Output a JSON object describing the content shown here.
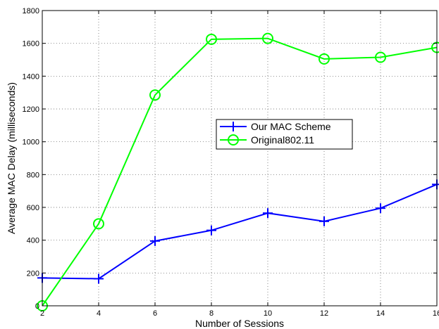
{
  "chart_data": {
    "type": "line",
    "xlabel": "Number of Sessions",
    "ylabel": "Average MAC Delay (milliseconds)",
    "xlim": [
      2,
      16
    ],
    "ylim": [
      0,
      1800
    ],
    "xticks": [
      2,
      4,
      6,
      8,
      10,
      12,
      14,
      16
    ],
    "yticks": [
      0,
      200,
      400,
      600,
      800,
      1000,
      1200,
      1400,
      1600,
      1800
    ],
    "grid": true,
    "legend_position": "center-right",
    "x": [
      2,
      4,
      6,
      8,
      10,
      12,
      14,
      16
    ],
    "series": [
      {
        "name": "Our MAC Scheme",
        "color": "#0000ff",
        "marker": "plus",
        "values": [
          170,
          165,
          395,
          460,
          565,
          515,
          595,
          740
        ]
      },
      {
        "name": "Original802.11",
        "color": "#00ff00",
        "marker": "circle",
        "values": [
          0,
          500,
          1285,
          1625,
          1630,
          1505,
          1515,
          1575
        ]
      }
    ]
  }
}
